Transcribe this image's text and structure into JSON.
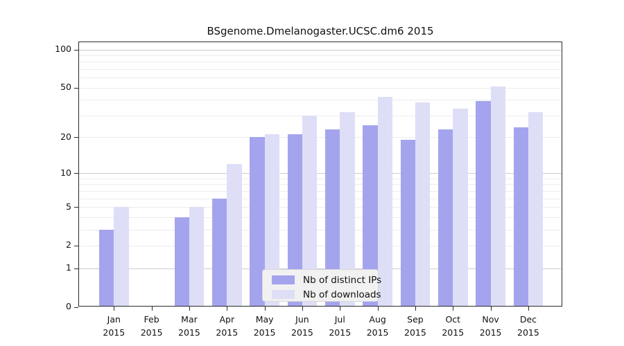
{
  "title": "BSgenome.Dmelanogaster.UCSC.dm6 2015",
  "chart_data": {
    "type": "bar",
    "title": "BSgenome.Dmelanogaster.UCSC.dm6 2015",
    "categories": [
      "Jan",
      "Feb",
      "Mar",
      "Apr",
      "May",
      "Jun",
      "Jul",
      "Aug",
      "Sep",
      "Oct",
      "Nov",
      "Dec"
    ],
    "year": "2015",
    "series": [
      {
        "name": "Nb of distinct IPs",
        "color": "#a4a4ee",
        "values": [
          3,
          0,
          4,
          6,
          20,
          21,
          23,
          25,
          19,
          23,
          39,
          24
        ]
      },
      {
        "name": "Nb of downloads",
        "color": "#dedef7",
        "values": [
          5,
          0,
          5,
          12,
          21,
          30,
          32,
          42,
          38,
          34,
          51,
          32
        ]
      }
    ],
    "yscale": "log10(1+x)",
    "yticks": [
      0,
      1,
      2,
      5,
      10,
      20,
      50,
      100
    ],
    "major_gridlines": [
      1,
      10,
      100
    ],
    "minor_gridlines": [
      2,
      3,
      4,
      5,
      6,
      7,
      8,
      9,
      20,
      30,
      40,
      50,
      60,
      70,
      80,
      90
    ],
    "ylim": [
      0,
      110
    ],
    "xlabel": "",
    "ylabel": "",
    "grid": "horizontal",
    "legend_position": "inside-bottom-center",
    "colors": {
      "background": "#ffffff",
      "axis": "#2a2a2a",
      "text": "#111111",
      "grid_major": "#cccccc",
      "grid_minor": "#ececec",
      "legend_bg": "#f1f1f1",
      "legend_border": "#d8d8d8"
    }
  }
}
